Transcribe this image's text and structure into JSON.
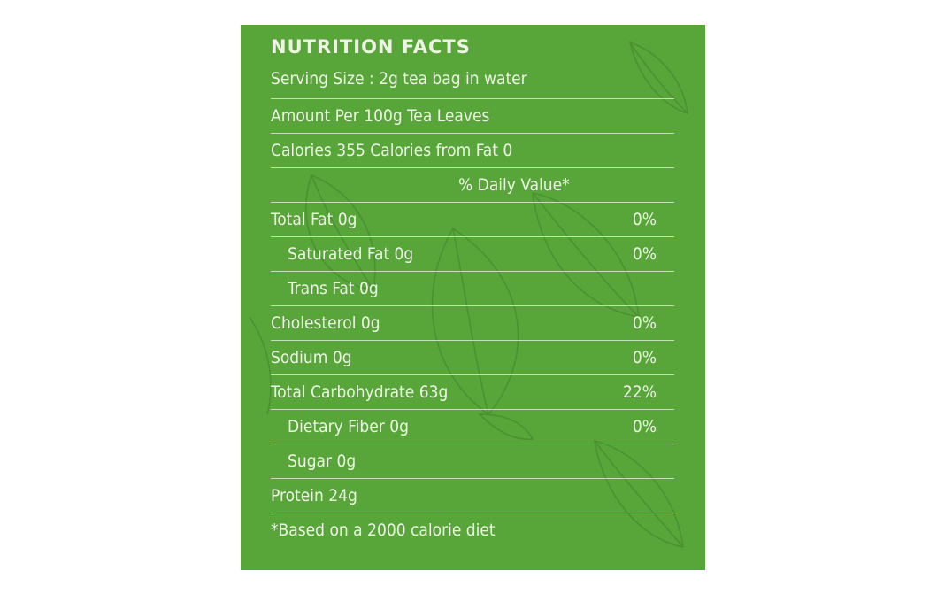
{
  "nutrition": {
    "title": "NUTRITION FACTS",
    "serving_size": "Serving Size : 2g tea bag in water",
    "amount_per": "Amount Per 100g Tea Leaves",
    "calories": "Calories 355 Calories from Fat 0",
    "daily_value_header": "% Daily Value*",
    "rows": [
      {
        "label": "Total Fat 0g",
        "percent": "0%"
      },
      {
        "label": "Saturated Fat 0g",
        "percent": "0%"
      },
      {
        "label": "Trans Fat 0g",
        "percent": ""
      },
      {
        "label": "Cholesterol 0g",
        "percent": "0%"
      },
      {
        "label": "Sodium 0g",
        "percent": "0%"
      },
      {
        "label": "Total Carbohydrate 63g",
        "percent": "22%"
      },
      {
        "label": "Dietary Fiber 0g",
        "percent": "0%"
      },
      {
        "label": "Sugar 0g",
        "percent": ""
      },
      {
        "label": "Protein 24g",
        "percent": ""
      }
    ],
    "footnote": "*Based on a 2000 calorie diet"
  },
  "colors": {
    "panel_green": "#58a53a",
    "text": "#eef3e6"
  }
}
